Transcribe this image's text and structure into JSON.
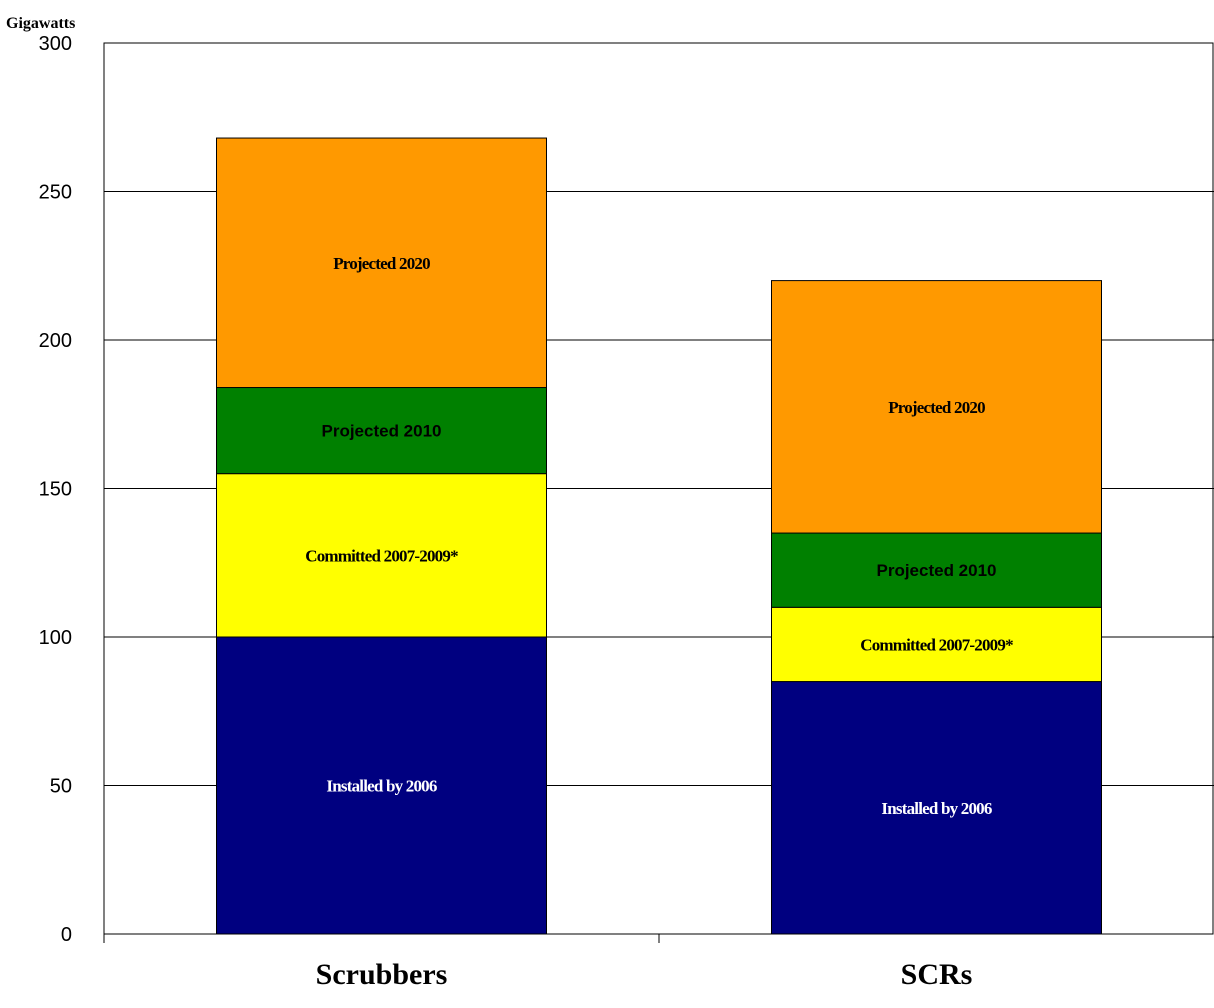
{
  "chart_data": {
    "type": "bar",
    "stacked": true,
    "ylabel": "Gigawatts",
    "ylim": [
      0,
      300
    ],
    "yticks": [
      0,
      50,
      100,
      150,
      200,
      250,
      300
    ],
    "grid": true,
    "categories": [
      "Scrubbers",
      "SCRs"
    ],
    "series": [
      {
        "name": "Installed by 2006",
        "color": "#000080",
        "text_color": "#ffffff",
        "values": [
          100,
          85
        ]
      },
      {
        "name": "Committed 2007-2009*",
        "color": "#ffff00",
        "text_color": "#000000",
        "values": [
          55,
          25
        ]
      },
      {
        "name": "Projected 2010",
        "color": "#008000",
        "text_color": "#000000",
        "values": [
          29,
          25
        ]
      },
      {
        "name": "Projected 2020",
        "color": "#ff9900",
        "text_color": "#000000",
        "values": [
          84,
          85
        ]
      }
    ]
  }
}
